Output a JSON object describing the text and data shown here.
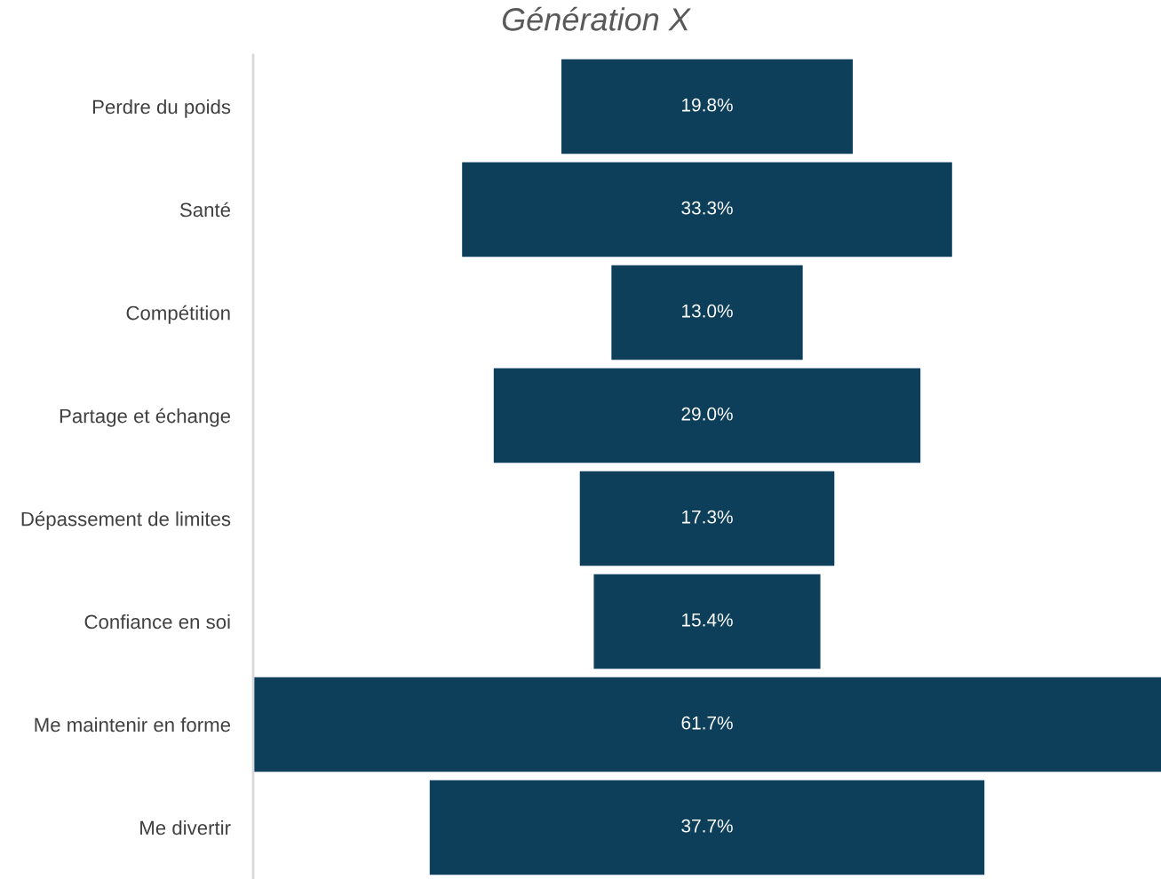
{
  "chart_data": {
    "type": "other",
    "title": "Génération X",
    "categories": [
      "Perdre du poids",
      "Santé",
      "Compétition",
      "Partage et échange",
      "Dépassement de limites",
      "Confiance en soi",
      "Me maintenir en forme",
      "Me divertir"
    ],
    "values": [
      19.8,
      33.3,
      13.0,
      29.0,
      17.3,
      15.4,
      61.7,
      37.7
    ],
    "value_labels": [
      "19.8%",
      "33.3%",
      "13.0%",
      "29.0%",
      "17.3%",
      "15.4%",
      "61.7%",
      "37.7%"
    ],
    "color": "#0d3f5a"
  }
}
